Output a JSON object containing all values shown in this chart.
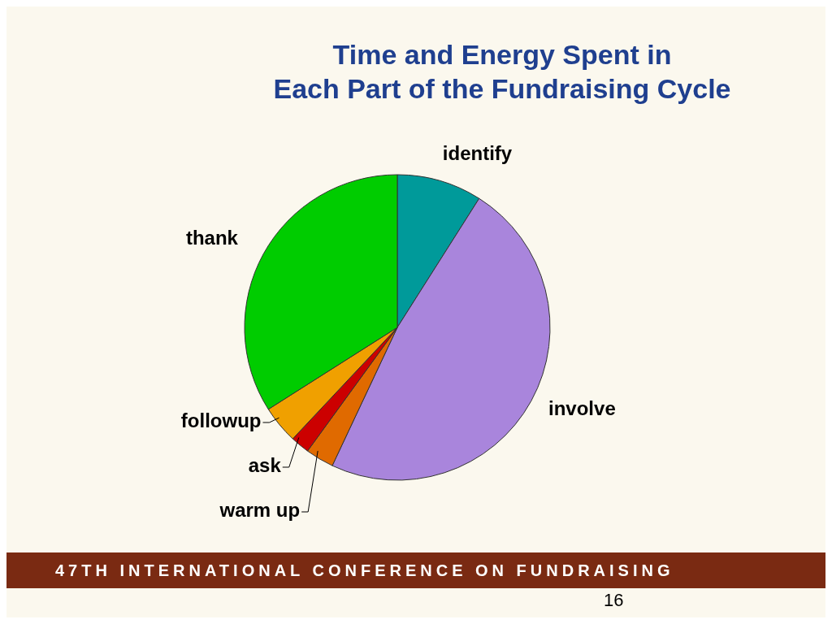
{
  "chart_data": {
    "type": "pie",
    "title": "Time and Energy Spent in\nEach Part of the Fundraising Cycle",
    "categories": [
      "identify",
      "involve",
      "warm up",
      "ask",
      "followup",
      "thank"
    ],
    "values": [
      9,
      48,
      3,
      2,
      4,
      34
    ],
    "colors": [
      "#009a9a",
      "#a985dc",
      "#e06a00",
      "#cc0000",
      "#f0a000",
      "#00cc00"
    ],
    "annotations": [
      "47TH INTERNATIONAL CONFERENCE ON FUNDRAISING",
      "16"
    ]
  }
}
